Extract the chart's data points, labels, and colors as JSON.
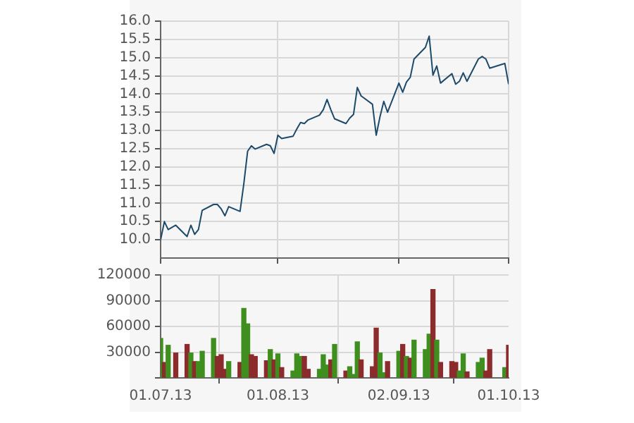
{
  "chart_data": [
    {
      "type": "line",
      "x": [
        "2013-07-01",
        "2013-07-02",
        "2013-07-03",
        "2013-07-05",
        "2013-07-08",
        "2013-07-09",
        "2013-07-10",
        "2013-07-11",
        "2013-07-12",
        "2013-07-15",
        "2013-07-16",
        "2013-07-17",
        "2013-07-18",
        "2013-07-19",
        "2013-07-22",
        "2013-07-23",
        "2013-07-24",
        "2013-07-25",
        "2013-07-26",
        "2013-07-29",
        "2013-07-30",
        "2013-07-31",
        "2013-08-01",
        "2013-08-02",
        "2013-08-05",
        "2013-08-06",
        "2013-08-07",
        "2013-08-08",
        "2013-08-09",
        "2013-08-12",
        "2013-08-13",
        "2013-08-14",
        "2013-08-15",
        "2013-08-16",
        "2013-08-19",
        "2013-08-20",
        "2013-08-21",
        "2013-08-22",
        "2013-08-23",
        "2013-08-26",
        "2013-08-27",
        "2013-08-28",
        "2013-08-29",
        "2013-08-30",
        "2013-09-02",
        "2013-09-03",
        "2013-09-04",
        "2013-09-05",
        "2013-09-06",
        "2013-09-09",
        "2013-09-10",
        "2013-09-11",
        "2013-09-12",
        "2013-09-13",
        "2013-09-16",
        "2013-09-17",
        "2013-09-18",
        "2013-09-19",
        "2013-09-20",
        "2013-09-23",
        "2013-09-24",
        "2013-09-25",
        "2013-09-26",
        "2013-09-30",
        "2013-10-01"
      ],
      "values": [
        10.0,
        10.5,
        10.28,
        10.4,
        10.09,
        10.4,
        10.15,
        10.28,
        10.81,
        10.97,
        10.97,
        10.85,
        10.66,
        10.91,
        10.78,
        11.54,
        12.43,
        12.58,
        12.49,
        12.62,
        12.58,
        12.37,
        12.87,
        12.78,
        12.84,
        13.04,
        13.22,
        13.19,
        13.29,
        13.42,
        13.57,
        13.85,
        13.57,
        13.32,
        13.19,
        13.34,
        13.44,
        14.18,
        13.95,
        13.72,
        12.87,
        13.38,
        13.8,
        13.5,
        14.3,
        14.05,
        14.33,
        14.46,
        14.96,
        15.28,
        15.59,
        14.52,
        14.77,
        14.3,
        14.56,
        14.27,
        14.35,
        14.58,
        14.35,
        14.96,
        15.03,
        14.96,
        14.71,
        14.84,
        14.27
      ],
      "color": "#1d4a6a",
      "xlim": [
        "2013-07-01",
        "2013-10-01"
      ],
      "xticks": [
        {
          "value": "2013-07-01",
          "label": null
        },
        {
          "value": "2013-08-01",
          "label": null
        },
        {
          "value": "2013-09-02",
          "label": null
        },
        {
          "value": "2013-10-01",
          "label": null
        }
      ],
      "ylim": [
        9.5,
        16
      ],
      "yticks": [
        {
          "value": 10,
          "label": "10.0"
        },
        {
          "value": 10.5,
          "label": "10.5"
        },
        {
          "value": 11,
          "label": "11.0"
        },
        {
          "value": 11.5,
          "label": "11.5"
        },
        {
          "value": 12,
          "label": "12.0"
        },
        {
          "value": 12.5,
          "label": "12.5"
        },
        {
          "value": 13,
          "label": "13.0"
        },
        {
          "value": 13.5,
          "label": "13.5"
        },
        {
          "value": 14,
          "label": "14.0"
        },
        {
          "value": 14.5,
          "label": "14.5"
        },
        {
          "value": 15,
          "label": "15.0"
        },
        {
          "value": 15.5,
          "label": "15.5"
        },
        {
          "value": 16,
          "label": "16.0"
        }
      ],
      "grid": true,
      "tick_labels": "y"
    },
    {
      "type": "bar",
      "x": [
        "2013-07-01",
        "2013-07-02",
        "2013-07-03",
        "2013-07-05",
        "2013-07-08",
        "2013-07-09",
        "2013-07-10",
        "2013-07-11",
        "2013-07-12",
        "2013-07-15",
        "2013-07-16",
        "2013-07-17",
        "2013-07-18",
        "2013-07-19",
        "2013-07-22",
        "2013-07-23",
        "2013-07-24",
        "2013-07-25",
        "2013-07-26",
        "2013-07-29",
        "2013-07-30",
        "2013-07-31",
        "2013-08-01",
        "2013-08-02",
        "2013-08-05",
        "2013-08-06",
        "2013-08-07",
        "2013-08-08",
        "2013-08-09",
        "2013-08-12",
        "2013-08-13",
        "2013-08-14",
        "2013-08-15",
        "2013-08-16",
        "2013-08-19",
        "2013-08-20",
        "2013-08-21",
        "2013-08-22",
        "2013-08-23",
        "2013-08-26",
        "2013-08-27",
        "2013-08-28",
        "2013-08-29",
        "2013-08-30",
        "2013-09-02",
        "2013-09-03",
        "2013-09-04",
        "2013-09-05",
        "2013-09-06",
        "2013-09-09",
        "2013-09-10",
        "2013-09-11",
        "2013-09-12",
        "2013-09-13",
        "2013-09-16",
        "2013-09-17",
        "2013-09-18",
        "2013-09-19",
        "2013-09-20",
        "2013-09-23",
        "2013-09-24",
        "2013-09-25",
        "2013-09-26",
        "2013-09-30",
        "2013-10-01"
      ],
      "values": [
        46000,
        18000,
        38000,
        29000,
        39000,
        29000,
        19000,
        19000,
        31000,
        46000,
        25000,
        27000,
        10000,
        19000,
        18000,
        81000,
        63000,
        27000,
        25000,
        20000,
        33000,
        21000,
        28000,
        12000,
        8000,
        28000,
        25000,
        25000,
        10000,
        10000,
        27000,
        15000,
        21000,
        39000,
        8000,
        13000,
        4000,
        42000,
        21000,
        13000,
        58000,
        29000,
        6000,
        19000,
        31000,
        39000,
        25000,
        23000,
        44000,
        33000,
        51000,
        103000,
        44000,
        18000,
        19000,
        18000,
        8000,
        28000,
        7000,
        18000,
        23000,
        8000,
        33000,
        12000,
        38000
      ],
      "colors": [
        "#3f8f1f",
        "#8c2b2b",
        "#3f8f1f",
        "#8c2b2b",
        "#8c2b2b",
        "#3f8f1f",
        "#8c2b2b",
        "#3f8f1f",
        "#3f8f1f",
        "#3f8f1f",
        "#8c2b2b",
        "#8c2b2b",
        "#8c2b2b",
        "#3f8f1f",
        "#8c2b2b",
        "#3f8f1f",
        "#3f8f1f",
        "#8c2b2b",
        "#8c2b2b",
        "#8c2b2b",
        "#3f8f1f",
        "#8c2b2b",
        "#3f8f1f",
        "#8c2b2b",
        "#3f8f1f",
        "#3f8f1f",
        "#3f8f1f",
        "#8c2b2b",
        "#8c2b2b",
        "#3f8f1f",
        "#3f8f1f",
        "#3f8f1f",
        "#8c2b2b",
        "#3f8f1f",
        "#8c2b2b",
        "#3f8f1f",
        "#3f8f1f",
        "#3f8f1f",
        "#8c2b2b",
        "#8c2b2b",
        "#8c2b2b",
        "#3f8f1f",
        "#3f8f1f",
        "#8c2b2b",
        "#3f8f1f",
        "#8c2b2b",
        "#3f8f1f",
        "#8c2b2b",
        "#3f8f1f",
        "#3f8f1f",
        "#3f8f1f",
        "#8c2b2b",
        "#3f8f1f",
        "#8c2b2b",
        "#8c2b2b",
        "#8c2b2b",
        "#3f8f1f",
        "#3f8f1f",
        "#8c2b2b",
        "#3f8f1f",
        "#3f8f1f",
        "#8c2b2b",
        "#8c2b2b",
        "#3f8f1f",
        "#8c2b2b"
      ],
      "xlim": [
        "2013-07-01",
        "2013-10-01"
      ],
      "xticks": [
        {
          "value": "2013-07-01",
          "label": "01.07.13"
        },
        {
          "value": "2013-08-01",
          "label": "01.08.13"
        },
        {
          "value": "2013-09-02",
          "label": "02.09.13"
        },
        {
          "value": "2013-10-01",
          "label": "01.10.13"
        }
      ],
      "ylim": [
        0,
        120000
      ],
      "yticks": [
        {
          "value": 0,
          "label": null
        },
        30000,
        60000,
        90000,
        120000
      ],
      "grid": true
    }
  ]
}
